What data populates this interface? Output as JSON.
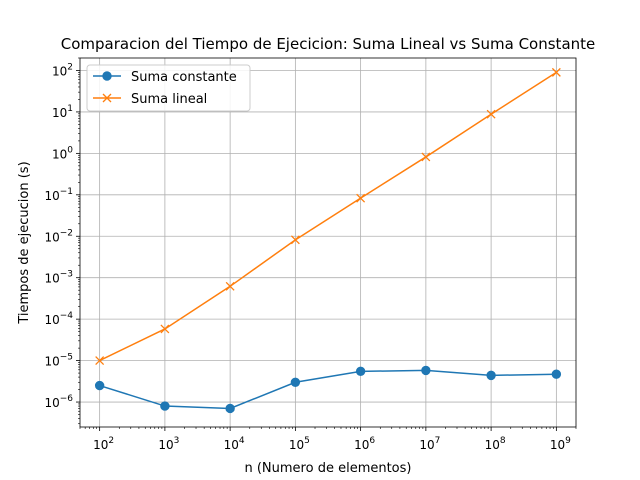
{
  "chart_data": {
    "type": "line",
    "title": "Comparacion del Tiempo de Ejecicion: Suma Lineal vs Suma Constante",
    "xlabel": "n (Numero de elementos)",
    "ylabel": "Tiempos de ejecucion (s)",
    "xscale": "log",
    "yscale": "log",
    "xlim": [
      50,
      2000000000
    ],
    "ylim": [
      2.5e-07,
      200
    ],
    "grid": true,
    "legend_position": "upper-left",
    "x": [
      100,
      1000,
      10000,
      100000,
      1000000,
      10000000,
      100000000,
      1000000000
    ],
    "xticks": [
      {
        "base": "10",
        "exp": "2",
        "value": 100
      },
      {
        "base": "10",
        "exp": "3",
        "value": 1000
      },
      {
        "base": "10",
        "exp": "4",
        "value": 10000
      },
      {
        "base": "10",
        "exp": "5",
        "value": 100000
      },
      {
        "base": "10",
        "exp": "6",
        "value": 1000000
      },
      {
        "base": "10",
        "exp": "7",
        "value": 10000000
      },
      {
        "base": "10",
        "exp": "8",
        "value": 100000000
      },
      {
        "base": "10",
        "exp": "9",
        "value": 1000000000
      }
    ],
    "yticks": [
      {
        "base": "10",
        "exp": "−6",
        "value": 1e-06
      },
      {
        "base": "10",
        "exp": "−5",
        "value": 1e-05
      },
      {
        "base": "10",
        "exp": "−4",
        "value": 0.0001
      },
      {
        "base": "10",
        "exp": "−3",
        "value": 0.001
      },
      {
        "base": "10",
        "exp": "−2",
        "value": 0.01
      },
      {
        "base": "10",
        "exp": "−1",
        "value": 0.1
      },
      {
        "base": "10",
        "exp": "0",
        "value": 1
      },
      {
        "base": "10",
        "exp": "1",
        "value": 10
      },
      {
        "base": "10",
        "exp": "2",
        "value": 100
      }
    ],
    "series": [
      {
        "name": "Suma constante",
        "color": "#1f77b4",
        "marker": "circle",
        "values": [
          2.5e-06,
          8e-07,
          7e-07,
          3e-06,
          5.5e-06,
          5.8e-06,
          4.4e-06,
          4.7e-06
        ]
      },
      {
        "name": "Suma lineal",
        "color": "#ff7f0e",
        "marker": "x",
        "values": [
          1e-05,
          5.8e-05,
          0.00062,
          0.0082,
          0.083,
          0.82,
          8.8,
          90
        ]
      }
    ]
  }
}
